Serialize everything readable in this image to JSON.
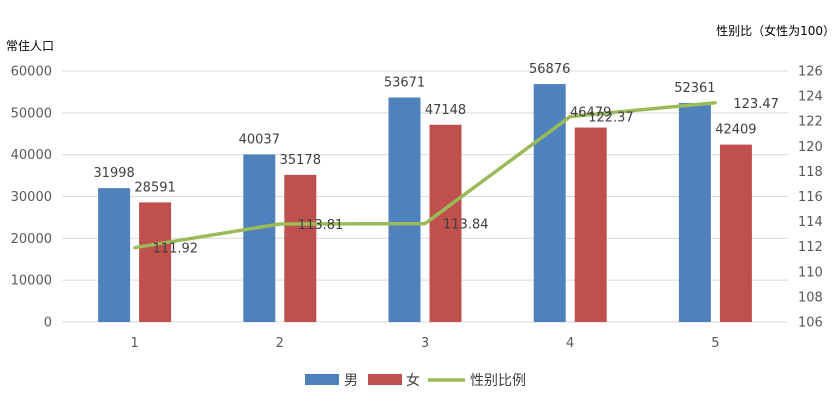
{
  "chart_data": {
    "type": "bar",
    "title": "",
    "categories": [
      "1",
      "2",
      "3",
      "4",
      "5"
    ],
    "series": [
      {
        "name": "男",
        "type": "bar",
        "axis": "left",
        "color": "#4f81bd",
        "values": [
          31998,
          40037,
          53671,
          56876,
          52361
        ]
      },
      {
        "name": "女",
        "type": "bar",
        "axis": "left",
        "color": "#c0504d",
        "values": [
          28591,
          35178,
          47148,
          46479,
          42409
        ]
      },
      {
        "name": "性别比例",
        "type": "line",
        "axis": "right",
        "color": "#9bbb59",
        "values": [
          111.92,
          113.81,
          113.84,
          122.37,
          123.47
        ]
      }
    ],
    "y_left": {
      "label": "常住人口",
      "min": 0,
      "max": 60000,
      "ticks": [
        "0",
        "10000",
        "20000",
        "30000",
        "40000",
        "50000",
        "60000"
      ]
    },
    "y_right": {
      "label": "性别比（女性为100）",
      "min": 106,
      "max": 126,
      "ticks": [
        "106",
        "108",
        "110",
        "112",
        "114",
        "116",
        "118",
        "120",
        "122",
        "124",
        "126"
      ]
    },
    "grid": true,
    "legend_position": "bottom"
  }
}
